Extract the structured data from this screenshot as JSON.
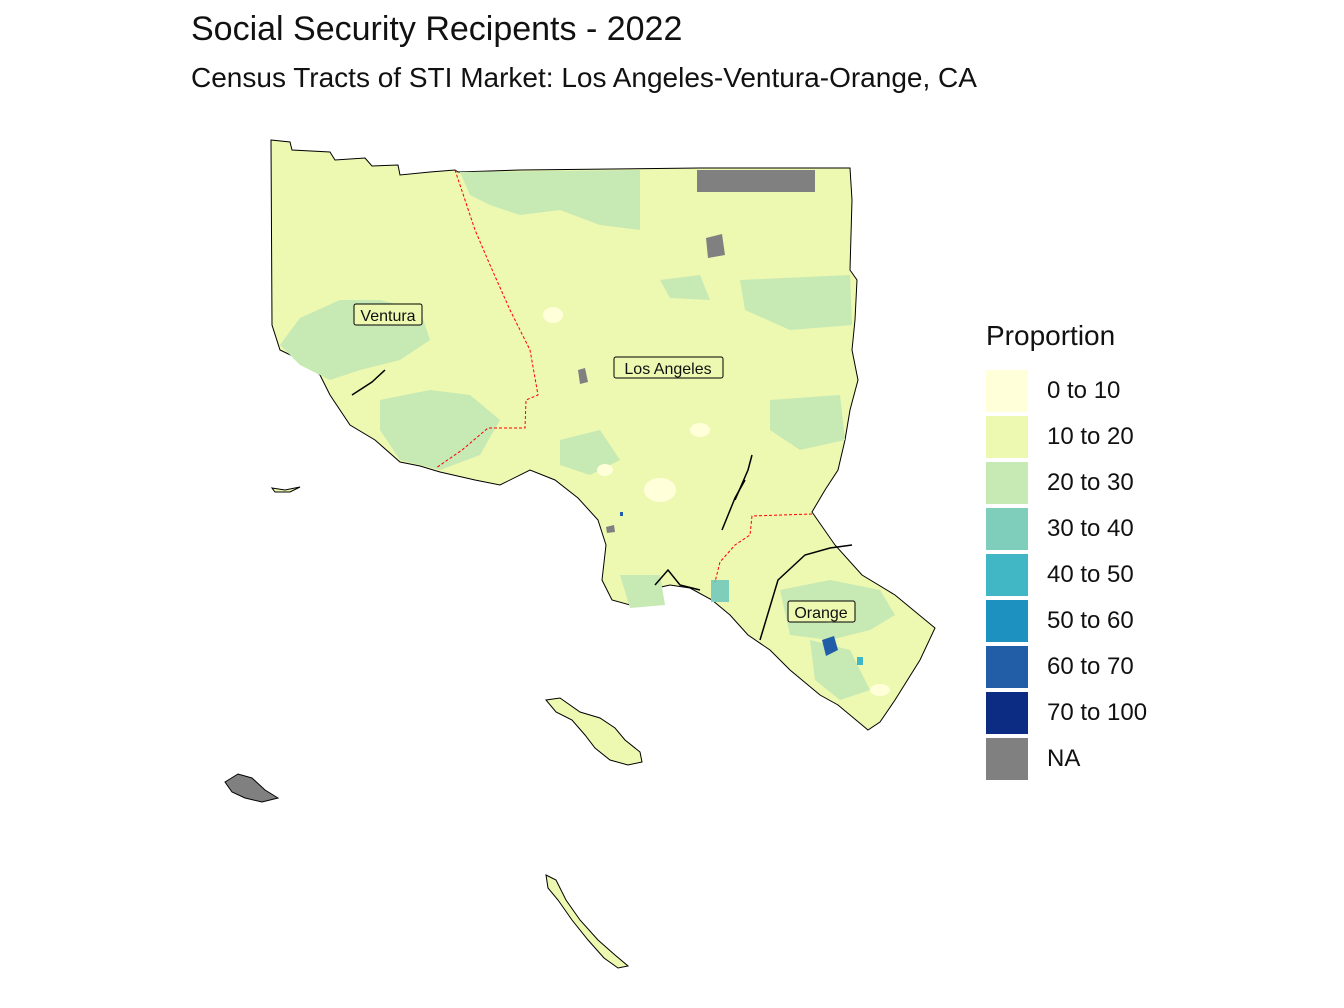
{
  "title": "Social Security Recipents - 2022",
  "subtitle": "Census Tracts of STI Market: Los Angeles-Ventura-Orange, CA",
  "legend": {
    "title": "Proportion",
    "items": [
      {
        "label": "0 to 10",
        "color": "#ffffd9"
      },
      {
        "label": "10 to 20",
        "color": "#edf8b1"
      },
      {
        "label": "20 to 30",
        "color": "#c7e9b4"
      },
      {
        "label": "30 to 40",
        "color": "#7fcdbb"
      },
      {
        "label": "40 to 50",
        "color": "#41b6c4"
      },
      {
        "label": "50 to 60",
        "color": "#1d91c0"
      },
      {
        "label": "60 to 70",
        "color": "#225ea8"
      },
      {
        "label": "70 to 100",
        "color": "#0c2c84"
      },
      {
        "label": "NA",
        "color": "#808080"
      }
    ]
  },
  "counties": [
    {
      "name": "Ventura"
    },
    {
      "name": "Los Angeles"
    },
    {
      "name": "Orange"
    }
  ],
  "boundary_color": "#ff0000"
}
